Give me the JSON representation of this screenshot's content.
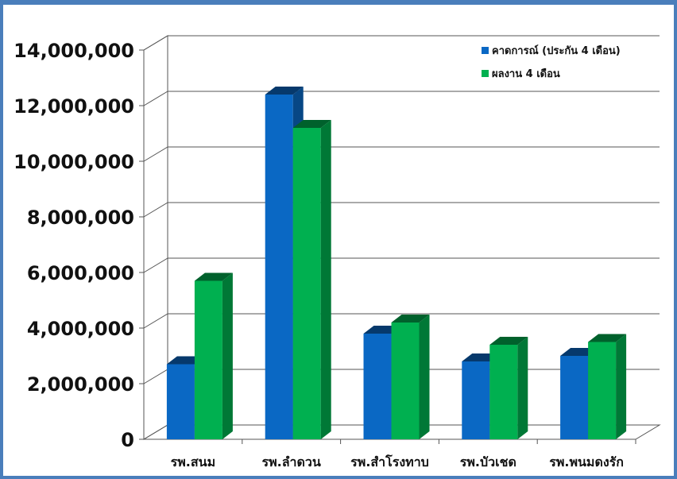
{
  "chart_data": {
    "type": "bar",
    "title": "",
    "xlabel": "",
    "ylabel": "",
    "categories": [
      "รพ.สนม",
      "รพ.ลำดวน",
      "รพ.สำโรงทาบ",
      "รพ.บัวเชด",
      "รพ.พนมดงรัก"
    ],
    "series": [
      {
        "name": "คาดการณ์ (ประกัน 4 เดือน)",
        "color": "#0a68c4",
        "values": [
          2700000,
          12400000,
          3800000,
          2800000,
          3000000
        ]
      },
      {
        "name": "ผลงาน 4 เดือน",
        "color": "#00b050",
        "values": [
          5700000,
          11200000,
          4200000,
          3400000,
          3500000
        ]
      }
    ],
    "ylim": [
      0,
      14000000
    ],
    "yticks": [
      "0",
      "2,000,000",
      "4,000,000",
      "6,000,000",
      "8,000,000",
      "10,000,000",
      "12,000,000",
      "14,000,000"
    ],
    "grid": true,
    "legend": "top-right",
    "style": "3d-clustered-column"
  }
}
